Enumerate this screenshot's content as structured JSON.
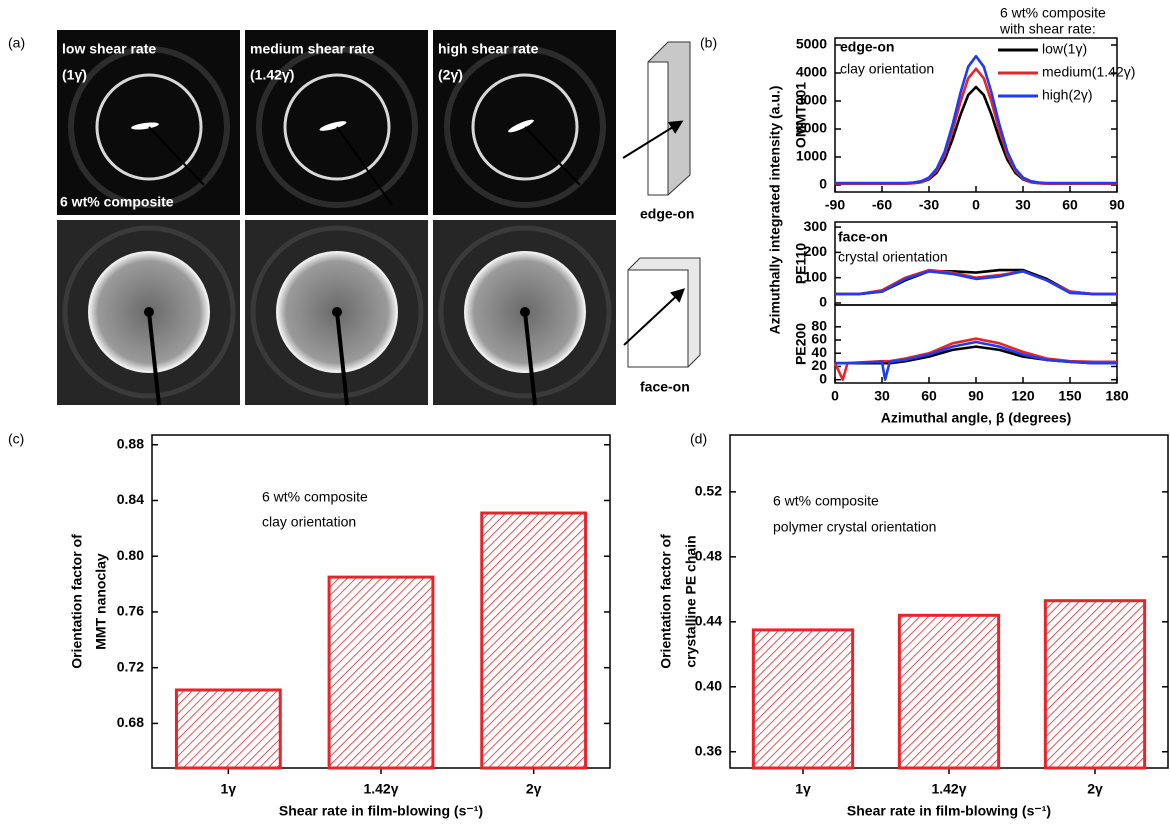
{
  "panel_a": {
    "label": "(a)",
    "columns": [
      {
        "title": "low shear rate",
        "rate": "(1γ̇)"
      },
      {
        "title": "medium shear rate",
        "rate": "(1.42γ̇)"
      },
      {
        "title": "high shear rate",
        "rate": "(2γ̇)"
      }
    ],
    "composite": "6 wt% composite",
    "views": [
      "edge-on",
      "face-on"
    ]
  },
  "chart_data": [
    {
      "type": "line",
      "label": "(b)",
      "ylabel": "Azimuthally integrated intensity (a.u.)",
      "panel_ylabel": "OMMT001",
      "annotations": [
        "edge-on",
        "clay orientation"
      ],
      "legend_title": [
        "6 wt% composite",
        "with shear rate:"
      ],
      "x": [
        -90,
        -60,
        -45,
        -40,
        -35,
        -30,
        -25,
        -20,
        -15,
        -10,
        -5,
        0,
        5,
        10,
        15,
        20,
        25,
        30,
        35,
        40,
        45,
        60,
        90
      ],
      "xlim": [
        -90,
        90
      ],
      "xticks": [
        -90,
        -60,
        -30,
        0,
        30,
        60,
        90
      ],
      "ylim": [
        -250,
        5250
      ],
      "yticks": [
        0,
        1000,
        2000,
        3000,
        4000,
        5000
      ],
      "series": [
        {
          "name": "low(1γ)",
          "color": "#000000",
          "values": [
            50,
            50,
            50,
            63,
            99,
            202,
            443,
            909,
            1630,
            2489,
            3214,
            3500,
            3214,
            2489,
            1630,
            909,
            443,
            202,
            99,
            63,
            50,
            50,
            50
          ]
        },
        {
          "name": "medium(1.42γ)",
          "color": "#e8232a",
          "values": [
            50,
            50,
            50,
            66,
            108,
            230,
            517,
            1071,
            1928,
            2949,
            3810,
            4150,
            3810,
            2949,
            1928,
            1071,
            517,
            230,
            108,
            66,
            50,
            50,
            50
          ]
        },
        {
          "name": "high(2γ)",
          "color": "#1f3cf0",
          "values": [
            70,
            70,
            70,
            88,
            134,
            269,
            586,
            1198,
            2145,
            3273,
            4224,
            4600,
            4224,
            3273,
            2145,
            1198,
            586,
            269,
            134,
            88,
            70,
            70,
            70
          ]
        }
      ]
    },
    {
      "type": "line",
      "panel_ylabel": "PE110",
      "annotations": [
        "face-on",
        "crystal orientation"
      ],
      "x": [
        0,
        15,
        30,
        45,
        60,
        75,
        90,
        105,
        120,
        135,
        150,
        165,
        180
      ],
      "xlim": [
        0,
        180
      ],
      "ylim": [
        -8,
        320
      ],
      "yticks": [
        0,
        100,
        200,
        300
      ],
      "series": [
        {
          "color": "#000000",
          "values": [
            35,
            35,
            45,
            90,
            125,
            125,
            120,
            130,
            130,
            95,
            45,
            35,
            35
          ]
        },
        {
          "color": "#e8232a",
          "values": [
            35,
            35,
            50,
            100,
            130,
            120,
            100,
            110,
            125,
            90,
            45,
            35,
            35
          ]
        },
        {
          "color": "#1f3cf0",
          "values": [
            35,
            35,
            45,
            95,
            125,
            115,
            95,
            105,
            125,
            90,
            40,
            35,
            35
          ]
        }
      ]
    },
    {
      "type": "line",
      "panel_ylabel": "PE200",
      "xlabel": "Azimuthal angle, β (degrees)",
      "x": [
        0,
        5,
        8,
        30,
        32,
        35,
        45,
        60,
        75,
        90,
        105,
        120,
        135,
        150,
        165,
        180
      ],
      "xlim": [
        0,
        180
      ],
      "xticks": [
        0,
        30,
        60,
        90,
        120,
        150,
        180
      ],
      "ylim": [
        -5,
        113
      ],
      "yticks": [
        0,
        20,
        40,
        60,
        80
      ],
      "series": [
        {
          "color": "#000000",
          "values": [
            25,
            25,
            25,
            25,
            25,
            25,
            28,
            35,
            45,
            50,
            45,
            35,
            30,
            27,
            25,
            25
          ]
        },
        {
          "color": "#e8232a",
          "values": [
            25,
            0,
            25,
            28,
            28,
            28,
            32,
            40,
            55,
            62,
            55,
            42,
            32,
            28,
            27,
            27
          ]
        },
        {
          "color": "#1f3cf0",
          "values": [
            25,
            25,
            25,
            27,
            0,
            27,
            30,
            38,
            50,
            57,
            50,
            38,
            30,
            27,
            25,
            25
          ]
        }
      ]
    },
    {
      "type": "bar",
      "label": "(c)",
      "ylabel": [
        "Orientation factor of",
        "MMT nanoclay"
      ],
      "annotations": [
        "6 wt% composite",
        "clay orientation"
      ],
      "xlabel": "Shear rate in film-blowing  (s⁻¹)",
      "categories": [
        "1γ",
        "1.42γ",
        "2γ"
      ],
      "values": [
        0.704,
        0.785,
        0.831
      ],
      "color": "#e8232a",
      "ylim": [
        0.648,
        0.887
      ],
      "yticks": [
        0.68,
        0.72,
        0.76,
        {
          "value": 0.8,
          "label": "0.80"
        },
        0.84,
        0.88
      ]
    },
    {
      "type": "bar",
      "label": "(d)",
      "ylabel": [
        "Orientation factor of",
        "crystalline PE chain"
      ],
      "annotations": [
        "6 wt% composite",
        "polymer crystal orientation"
      ],
      "xlabel": "Shear rate in film-blowing  (s⁻¹)",
      "categories": [
        "1γ",
        "1.42γ",
        "2γ"
      ],
      "values": [
        0.435,
        0.444,
        0.453
      ],
      "color": "#e8232a",
      "ylim": [
        0.35,
        0.555
      ],
      "yticks": [
        0.36,
        {
          "value": 0.4,
          "label": "0.40"
        },
        0.44,
        0.48,
        0.52
      ]
    }
  ]
}
